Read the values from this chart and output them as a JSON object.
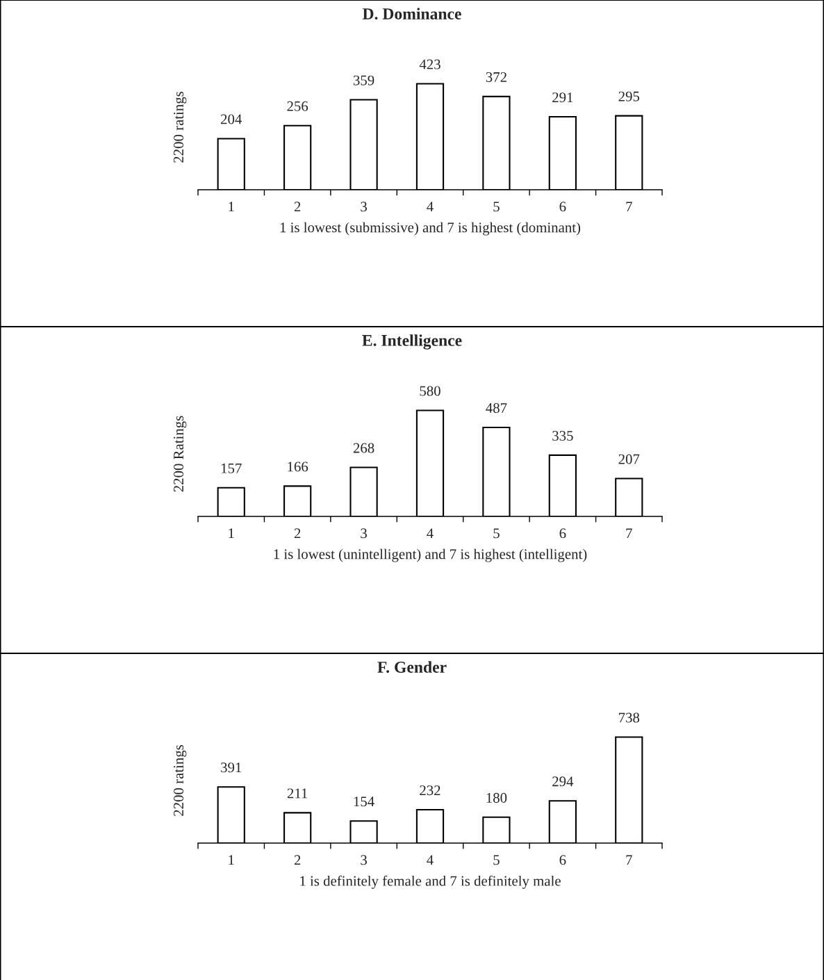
{
  "chart_data": [
    {
      "type": "bar",
      "title": "D. Dominance",
      "xlabel": "1 is lowest (submissive) and 7 is highest (dominant)",
      "ylabel": "2200 ratings",
      "categories": [
        "1",
        "2",
        "3",
        "4",
        "5",
        "6",
        "7"
      ],
      "values": [
        204,
        256,
        359,
        423,
        372,
        291,
        295
      ],
      "color": "#ffffff",
      "data_labels": true,
      "tick_labels": "x",
      "grid": false,
      "legend": false
    },
    {
      "type": "bar",
      "title": "E. Intelligence",
      "xlabel": "1 is lowest (unintelligent) and 7 is highest (intelligent)",
      "ylabel": "2200 Ratings",
      "categories": [
        "1",
        "2",
        "3",
        "4",
        "5",
        "6",
        "7"
      ],
      "values": [
        157,
        166,
        268,
        580,
        487,
        335,
        207
      ],
      "color": "#ffffff",
      "data_labels": true,
      "tick_labels": "x",
      "grid": false,
      "legend": false
    },
    {
      "type": "bar",
      "title": "F. Gender",
      "xlabel": "1 is definitely female and 7 is definitely male",
      "ylabel": "2200 ratings",
      "categories": [
        "1",
        "2",
        "3",
        "4",
        "5",
        "6",
        "7"
      ],
      "values": [
        391,
        211,
        154,
        232,
        180,
        294,
        738
      ],
      "color": "#ffffff",
      "data_labels": true,
      "tick_labels": "x",
      "grid": false,
      "legend": false
    }
  ]
}
